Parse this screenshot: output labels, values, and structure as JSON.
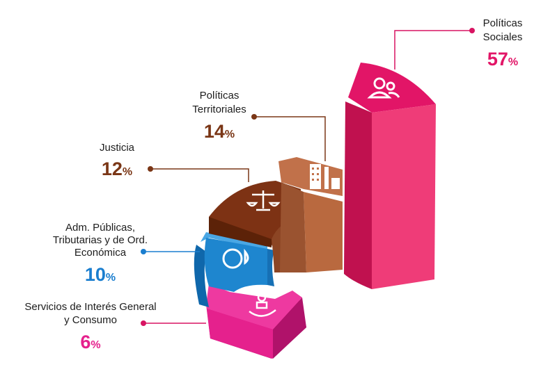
{
  "colors": {
    "sociales": "#e21567",
    "territoriales": "#c1714a",
    "justicia": "#7d3214",
    "adm": "#1e86cf",
    "servicios": "#e5218d",
    "leader_brown": "#7a3616",
    "leader_blue": "#1a7ecf",
    "leader_pink": "#d81462"
  },
  "chart_data": {
    "type": "pie",
    "title": "",
    "series": [
      {
        "label_lines": [
          "Políticas",
          "Sociales"
        ],
        "value": 57,
        "pct_num": "57",
        "pct_sym": "%",
        "color": "#e21567",
        "icon": "people-icon"
      },
      {
        "label_lines": [
          "Políticas",
          "Territoriales"
        ],
        "value": 14,
        "pct_num": "14",
        "pct_sym": "%",
        "color": "#c1714a",
        "icon": "city-buildings-icon"
      },
      {
        "label_lines": [
          "Justicia"
        ],
        "value": 12,
        "pct_num": "12",
        "pct_sym": "%",
        "color": "#7d3214",
        "icon": "scales-of-justice-icon"
      },
      {
        "label_lines": [
          "Adm. Públicas,",
          "Tributarias y de Ord.",
          "Económica"
        ],
        "value": 10,
        "pct_num": "10",
        "pct_sym": "%",
        "color": "#1e86cf",
        "icon": "pie-chart-icon"
      },
      {
        "label_lines": [
          "Servicios de Interés General",
          "y Consumo"
        ],
        "value": 6,
        "pct_num": "6",
        "pct_sym": "%",
        "color": "#e5218d",
        "icon": "hand-with-person-icon"
      }
    ]
  }
}
